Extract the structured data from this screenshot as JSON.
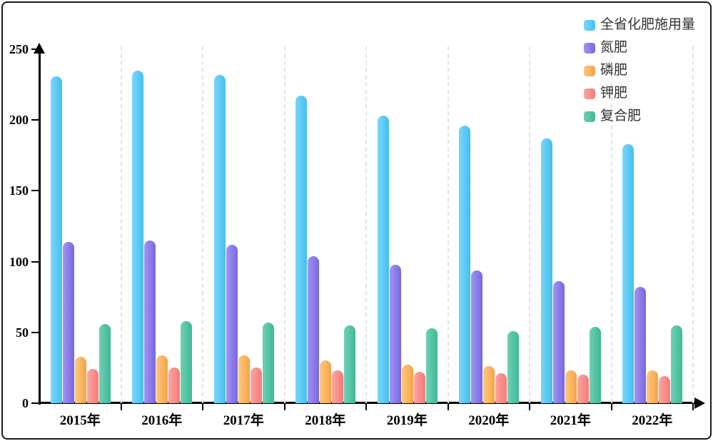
{
  "chart_data": {
    "type": "bar",
    "title": "",
    "xlabel": "",
    "ylabel": "",
    "categories": [
      "2015年",
      "2016年",
      "2017年",
      "2018年",
      "2019年",
      "2020年",
      "2021年",
      "2022年"
    ],
    "series": [
      {
        "name": "全省化肥施用量",
        "color": "#5CC9F5",
        "color_light": "#7BD6FA",
        "color_dark": "#45BFF0",
        "values": [
          231,
          235,
          232,
          217,
          203,
          196,
          187,
          183
        ]
      },
      {
        "name": "氮肥",
        "color": "#8B7BEA",
        "color_light": "#A295F0",
        "color_dark": "#7767E2",
        "values": [
          114,
          115,
          112,
          104,
          98,
          94,
          86,
          82
        ]
      },
      {
        "name": "磷肥",
        "color": "#FAB55F",
        "color_light": "#FCC77E",
        "color_dark": "#F5A345",
        "values": [
          33,
          34,
          34,
          30,
          27,
          26,
          23,
          23
        ]
      },
      {
        "name": "钾肥",
        "color": "#F88E8B",
        "color_light": "#FAA6A3",
        "color_dark": "#F57A78",
        "values": [
          24,
          25,
          25,
          23,
          22,
          21,
          20,
          19
        ]
      },
      {
        "name": "复合肥",
        "color": "#54C4A5",
        "color_light": "#70CFB4",
        "color_dark": "#3FB996",
        "values": [
          56,
          58,
          57,
          55,
          53,
          51,
          54,
          55
        ]
      }
    ],
    "ylim": [
      0,
      250
    ],
    "yticks": [
      0,
      50,
      100,
      150,
      200,
      250
    ],
    "grid": "vertical-dashed",
    "legend_position": "top-right",
    "axis_color": "#000000",
    "gridline_color": "#e4e4e4"
  }
}
